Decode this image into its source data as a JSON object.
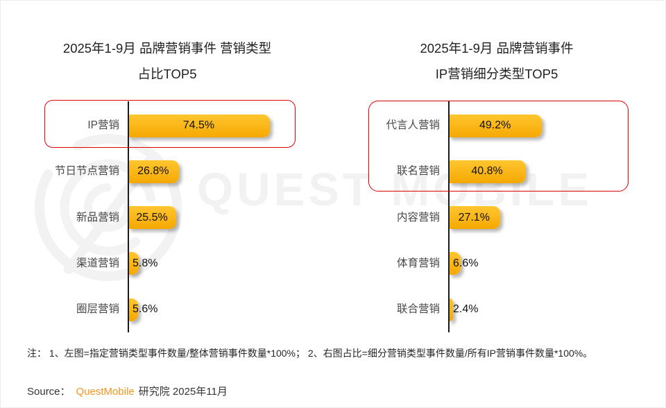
{
  "colors": {
    "bar_top": "#FFC630",
    "bar_bottom": "#F5A802",
    "highlight_border": "#E00000",
    "axis": "#1A1A1A",
    "brand_orange": "#F5941D",
    "watermark_gray": "#F2F2F2"
  },
  "watermark": {
    "text": "QUEST MOBILE",
    "logo_icon": "questmobile-q-rings-logo"
  },
  "chart_data": [
    {
      "type": "bar",
      "orientation": "horizontal",
      "title": "2025年1-9月 品牌营销事件 营销类型 占比TOP5",
      "title_line1": "2025年1-9月 品牌营销事件 营销类型",
      "title_line2": "占比TOP5",
      "categories": [
        "IP营销",
        "节日节点营销",
        "新品营销",
        "渠道营销",
        "圈层营销"
      ],
      "values": [
        74.5,
        26.8,
        25.5,
        5.8,
        5.6
      ],
      "value_labels": [
        "74.5%",
        "26.8%",
        "25.5%",
        "5.8%",
        "5.6%"
      ],
      "xlim": [
        0,
        87
      ],
      "grid": false,
      "legend": "none",
      "highlighted_categories": [
        "IP营销"
      ]
    },
    {
      "type": "bar",
      "orientation": "horizontal",
      "title": "2025年1-9月 品牌营销事件 IP营销细分类型TOP5",
      "title_line1": "2025年1-9月 品牌营销事件",
      "title_line2": "IP营销细分类型TOP5",
      "categories": [
        "代言人营销",
        "联名营销",
        "内容营销",
        "体育营销",
        "联合营销"
      ],
      "values": [
        49.2,
        40.8,
        27.1,
        6.6,
        2.4
      ],
      "value_labels": [
        "49.2%",
        "40.8%",
        "27.1%",
        "6.6%",
        "2.4%"
      ],
      "xlim": [
        0,
        87
      ],
      "grid": false,
      "legend": "none",
      "highlighted_categories": [
        "代言人营销",
        "联名营销"
      ]
    }
  ],
  "footnote": {
    "text": "注：  1、左图=指定营销类型事件数量/整体营销事件数量*100%；  2、右图占比=细分营销类型事件数量/所有IP营销事件数量*100%。"
  },
  "source": {
    "label": "Source：",
    "brand": "QuestMobile",
    "suffix": "研究院 2025年11月"
  }
}
